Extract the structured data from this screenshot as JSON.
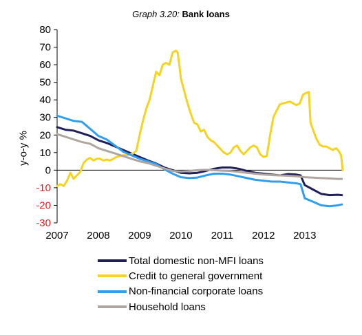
{
  "chart_data": {
    "type": "line",
    "title_prefix": "Graph 3.20:",
    "title": "Bank loans",
    "xlabel": "",
    "ylabel": "y-o-y %",
    "ylim": [
      -30,
      80
    ],
    "xlim": [
      2007.0,
      2013.92
    ],
    "xticks": [
      "2007",
      "2008",
      "2009",
      "2010",
      "2011",
      "2012",
      "2013"
    ],
    "yticks": [
      80,
      70,
      60,
      50,
      40,
      30,
      20,
      10,
      0,
      -10,
      -20,
      -30
    ],
    "negative_tick_color": "#e31a1c",
    "legend_position": "bottom",
    "series": [
      {
        "name": "Total domestic non-MFI loans",
        "color": "#1f1f5a",
        "points": [
          [
            2007.0,
            24.5
          ],
          [
            2007.2,
            23
          ],
          [
            2007.4,
            22.5
          ],
          [
            2007.6,
            21
          ],
          [
            2007.8,
            19.5
          ],
          [
            2008.0,
            17
          ],
          [
            2008.2,
            15.5
          ],
          [
            2008.4,
            13.5
          ],
          [
            2008.6,
            11.5
          ],
          [
            2008.8,
            9.5
          ],
          [
            2009.0,
            7.5
          ],
          [
            2009.2,
            5.5
          ],
          [
            2009.4,
            3.8
          ],
          [
            2009.6,
            1.5
          ],
          [
            2009.8,
            0
          ],
          [
            2010.0,
            -1.5
          ],
          [
            2010.2,
            -1.8
          ],
          [
            2010.4,
            -1.5
          ],
          [
            2010.6,
            -0.5
          ],
          [
            2010.8,
            0.8
          ],
          [
            2011.0,
            1.5
          ],
          [
            2011.2,
            1.5
          ],
          [
            2011.4,
            0.8
          ],
          [
            2011.6,
            -0.5
          ],
          [
            2011.8,
            -1.5
          ],
          [
            2012.0,
            -2
          ],
          [
            2012.2,
            -2.5
          ],
          [
            2012.4,
            -3
          ],
          [
            2012.6,
            -2.2
          ],
          [
            2012.8,
            -2.5
          ],
          [
            2012.9,
            -3
          ],
          [
            2013.0,
            -8.5
          ],
          [
            2013.2,
            -11
          ],
          [
            2013.4,
            -13.5
          ],
          [
            2013.6,
            -14.2
          ],
          [
            2013.8,
            -14
          ],
          [
            2013.9,
            -14.2
          ]
        ]
      },
      {
        "name": "Credit to general government",
        "color": "#f5d31e",
        "points": [
          [
            2007.0,
            -9
          ],
          [
            2007.08,
            -8
          ],
          [
            2007.16,
            -9
          ],
          [
            2007.24,
            -6
          ],
          [
            2007.32,
            -1.5
          ],
          [
            2007.4,
            -5
          ],
          [
            2007.48,
            -3
          ],
          [
            2007.56,
            -1
          ],
          [
            2007.64,
            4
          ],
          [
            2007.72,
            6
          ],
          [
            2007.8,
            7
          ],
          [
            2007.88,
            5.5
          ],
          [
            2007.96,
            6.5
          ],
          [
            2008.04,
            6.5
          ],
          [
            2008.12,
            5.5
          ],
          [
            2008.2,
            6
          ],
          [
            2008.28,
            5.5
          ],
          [
            2008.36,
            6.5
          ],
          [
            2008.44,
            7.5
          ],
          [
            2008.52,
            8
          ],
          [
            2008.6,
            8.5
          ],
          [
            2008.68,
            8.5
          ],
          [
            2008.76,
            9
          ],
          [
            2008.84,
            9.5
          ],
          [
            2008.92,
            11
          ],
          [
            2009.0,
            20
          ],
          [
            2009.08,
            28
          ],
          [
            2009.16,
            35
          ],
          [
            2009.24,
            40
          ],
          [
            2009.32,
            48
          ],
          [
            2009.4,
            56
          ],
          [
            2009.48,
            54
          ],
          [
            2009.56,
            60
          ],
          [
            2009.64,
            61
          ],
          [
            2009.72,
            60
          ],
          [
            2009.8,
            67
          ],
          [
            2009.88,
            68
          ],
          [
            2009.92,
            67
          ],
          [
            2009.96,
            60
          ],
          [
            2010.0,
            52
          ],
          [
            2010.08,
            45
          ],
          [
            2010.16,
            38
          ],
          [
            2010.24,
            32
          ],
          [
            2010.32,
            27
          ],
          [
            2010.4,
            26
          ],
          [
            2010.48,
            22
          ],
          [
            2010.56,
            23
          ],
          [
            2010.64,
            19
          ],
          [
            2010.72,
            17
          ],
          [
            2010.8,
            16
          ],
          [
            2010.88,
            14
          ],
          [
            2010.96,
            12
          ],
          [
            2011.04,
            10
          ],
          [
            2011.12,
            9
          ],
          [
            2011.2,
            10
          ],
          [
            2011.28,
            13
          ],
          [
            2011.36,
            14
          ],
          [
            2011.44,
            11
          ],
          [
            2011.52,
            9
          ],
          [
            2011.6,
            11
          ],
          [
            2011.68,
            13
          ],
          [
            2011.76,
            14
          ],
          [
            2011.84,
            13
          ],
          [
            2011.92,
            9
          ],
          [
            2012.0,
            7.5
          ],
          [
            2012.08,
            8
          ],
          [
            2012.16,
            20
          ],
          [
            2012.24,
            30
          ],
          [
            2012.32,
            34
          ],
          [
            2012.4,
            37.5
          ],
          [
            2012.48,
            38
          ],
          [
            2012.56,
            38.5
          ],
          [
            2012.64,
            39
          ],
          [
            2012.72,
            38
          ],
          [
            2012.8,
            37
          ],
          [
            2012.88,
            38
          ],
          [
            2012.96,
            43
          ],
          [
            2013.04,
            44
          ],
          [
            2013.1,
            44.5
          ],
          [
            2013.14,
            27
          ],
          [
            2013.2,
            23
          ],
          [
            2013.28,
            18
          ],
          [
            2013.36,
            14.5
          ],
          [
            2013.44,
            13.5
          ],
          [
            2013.52,
            13.5
          ],
          [
            2013.6,
            12.5
          ],
          [
            2013.68,
            11.5
          ],
          [
            2013.76,
            12.5
          ],
          [
            2013.82,
            11
          ],
          [
            2013.88,
            8.5
          ],
          [
            2013.92,
            0
          ]
        ]
      },
      {
        "name": "Non-financial corporate loans",
        "color": "#2e9ef0",
        "points": [
          [
            2007.0,
            31
          ],
          [
            2007.2,
            29.5
          ],
          [
            2007.4,
            28
          ],
          [
            2007.6,
            27.5
          ],
          [
            2007.8,
            23.5
          ],
          [
            2008.0,
            19.5
          ],
          [
            2008.2,
            17.5
          ],
          [
            2008.4,
            14
          ],
          [
            2008.6,
            10.5
          ],
          [
            2008.8,
            8.5
          ],
          [
            2009.0,
            6.5
          ],
          [
            2009.2,
            5
          ],
          [
            2009.4,
            3.5
          ],
          [
            2009.6,
            0.5
          ],
          [
            2009.8,
            -2
          ],
          [
            2010.0,
            -4
          ],
          [
            2010.2,
            -4.5
          ],
          [
            2010.4,
            -4.2
          ],
          [
            2010.6,
            -3
          ],
          [
            2010.8,
            -2
          ],
          [
            2011.0,
            -2
          ],
          [
            2011.2,
            -2.5
          ],
          [
            2011.4,
            -3.5
          ],
          [
            2011.6,
            -4.5
          ],
          [
            2011.8,
            -5.5
          ],
          [
            2012.0,
            -6
          ],
          [
            2012.2,
            -6.5
          ],
          [
            2012.4,
            -6.5
          ],
          [
            2012.6,
            -7
          ],
          [
            2012.8,
            -7.5
          ],
          [
            2012.9,
            -8
          ],
          [
            2013.0,
            -16
          ],
          [
            2013.2,
            -18
          ],
          [
            2013.4,
            -20
          ],
          [
            2013.6,
            -20.5
          ],
          [
            2013.8,
            -20
          ],
          [
            2013.9,
            -19.5
          ]
        ]
      },
      {
        "name": "Household loans",
        "color": "#b0a5a0",
        "points": [
          [
            2007.0,
            20.5
          ],
          [
            2007.2,
            19
          ],
          [
            2007.4,
            17.5
          ],
          [
            2007.6,
            16
          ],
          [
            2007.8,
            15
          ],
          [
            2008.0,
            12.5
          ],
          [
            2008.2,
            11
          ],
          [
            2008.4,
            9.5
          ],
          [
            2008.6,
            8
          ],
          [
            2008.8,
            6.5
          ],
          [
            2009.0,
            5
          ],
          [
            2009.2,
            4
          ],
          [
            2009.4,
            2.5
          ],
          [
            2009.6,
            1
          ],
          [
            2009.8,
            -0.5
          ],
          [
            2010.0,
            -0.8
          ],
          [
            2010.2,
            -0.5
          ],
          [
            2010.4,
            0
          ],
          [
            2010.6,
            0.2
          ],
          [
            2010.8,
            0
          ],
          [
            2011.0,
            -0.3
          ],
          [
            2011.2,
            -0.5
          ],
          [
            2011.4,
            -1
          ],
          [
            2011.6,
            -1.5
          ],
          [
            2011.8,
            -2
          ],
          [
            2012.0,
            -2.5
          ],
          [
            2012.2,
            -2.8
          ],
          [
            2012.4,
            -3
          ],
          [
            2012.6,
            -3.2
          ],
          [
            2012.8,
            -3.5
          ],
          [
            2013.0,
            -4
          ],
          [
            2013.2,
            -4.3
          ],
          [
            2013.4,
            -4.5
          ],
          [
            2013.6,
            -4.7
          ],
          [
            2013.8,
            -5
          ],
          [
            2013.9,
            -5
          ]
        ]
      }
    ]
  }
}
